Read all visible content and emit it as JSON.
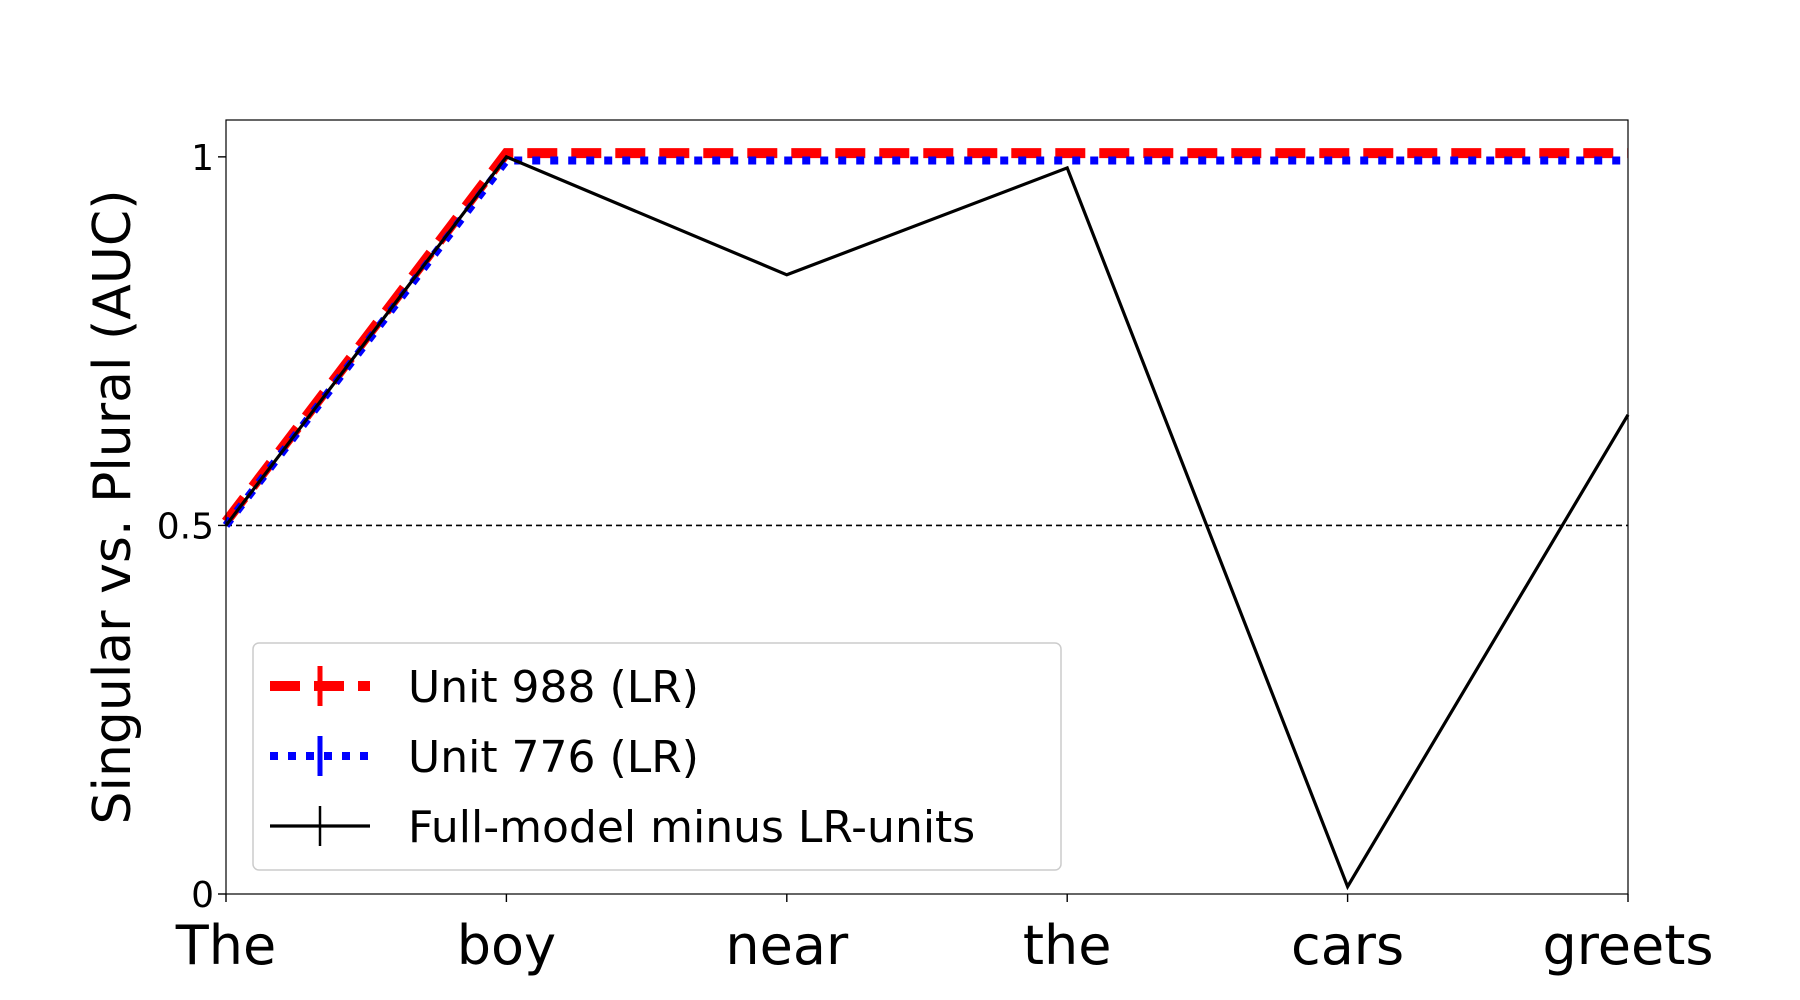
{
  "chart_data": {
    "type": "line",
    "title": "",
    "xlabel": "",
    "ylabel": "Singular vs. Plural (AUC)",
    "categories": [
      "The",
      "boy",
      "near",
      "the",
      "cars",
      "greets"
    ],
    "ylim": [
      0,
      1.05
    ],
    "yticks": [
      {
        "value": 0,
        "label": "0"
      },
      {
        "value": 0.5,
        "label": "0.5"
      },
      {
        "value": 1,
        "label": "1"
      }
    ],
    "reference_line": {
      "value": 0.5,
      "style": "dashed",
      "color": "#000000"
    },
    "grid": false,
    "legend_position": "lower-left",
    "series": [
      {
        "name": "Unit 988 (LR)",
        "values": [
          0.505,
          1.005,
          1.005,
          1.005,
          1.005,
          1.005
        ],
        "color": "#ff0000",
        "style": "dashed"
      },
      {
        "name": "Unit 776 (LR)",
        "values": [
          0.5,
          0.995,
          0.995,
          0.995,
          0.995,
          0.995
        ],
        "color": "#0000ff",
        "style": "dotted"
      },
      {
        "name": "Full-model minus LR-units",
        "values": [
          0.5,
          1.0,
          0.84,
          0.985,
          0.01,
          0.65
        ],
        "color": "#000000",
        "style": "solid"
      }
    ]
  }
}
